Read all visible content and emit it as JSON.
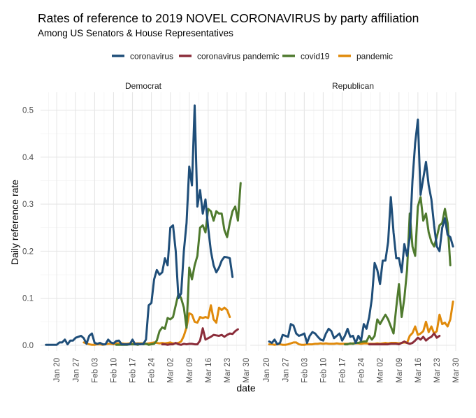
{
  "chart_data": {
    "type": "line",
    "title": "Rates of reference to 2019 NOVEL CORONAVIRUS by party affiliation",
    "subtitle": "Among US Senators & House Representatives",
    "xlabel": "date",
    "ylabel": "Daily reference rate",
    "legend_position": "top",
    "grid": true,
    "x_range": [
      "2020-01-14",
      "2020-03-30"
    ],
    "ylim": [
      -0.012,
      0.538
    ],
    "x_ticks": [
      "2020-01-20",
      "2020-01-27",
      "2020-02-03",
      "2020-02-10",
      "2020-02-17",
      "2020-02-24",
      "2020-03-02",
      "2020-03-09",
      "2020-03-16",
      "2020-03-23",
      "2020-03-30"
    ],
    "x_tick_labels": [
      "Jan 20",
      "Jan 27",
      "Feb 03",
      "Feb 10",
      "Feb 17",
      "Feb 24",
      "Mar 02",
      "Mar 09",
      "Mar 16",
      "Mar 23",
      "Mar 30"
    ],
    "y_ticks": [
      0.0,
      0.1,
      0.2,
      0.3,
      0.4,
      0.5
    ],
    "y_tick_labels": [
      "0.0",
      "0.1",
      "0.2",
      "0.3",
      "0.4",
      "0.5"
    ],
    "legend": [
      {
        "name": "coronavirus",
        "color": "#1f4e79"
      },
      {
        "name": "coronavirus pandemic",
        "color": "#8b2d3a"
      },
      {
        "name": "covid19",
        "color": "#4f7a2e"
      },
      {
        "name": "pandemic",
        "color": "#e08a0b"
      }
    ],
    "panels": [
      {
        "label": "Democrat",
        "series": [
          {
            "name": "coronavirus",
            "start": "2020-01-16",
            "values": [
              0.001,
              0.001,
              0.001,
              0.001,
              0.001,
              0.006,
              0.006,
              0.012,
              0.002,
              0.01,
              0.01,
              0.016,
              0.018,
              0.02,
              0.015,
              0.003,
              0.02,
              0.025,
              0.005,
              0.003,
              0.005,
              0.002,
              0.002,
              0.012,
              0.006,
              0.004,
              0.009,
              0.01,
              0.002,
              0.002,
              0.002,
              0.002,
              0.012,
              0.002,
              0.003,
              0.002,
              0.003,
              0.012,
              0.085,
              0.09,
              0.14,
              0.16,
              0.15,
              0.155,
              0.185,
              0.17,
              0.25,
              0.255,
              0.2,
              0.1,
              0.11,
              0.2,
              0.26,
              0.38,
              0.34,
              0.51,
              0.295,
              0.33,
              0.28,
              0.31,
              0.25,
              0.2,
              0.17,
              0.155,
              0.165,
              0.18,
              0.188,
              0.187,
              0.185,
              0.145
            ]
          },
          {
            "name": "coronavirus pandemic",
            "start": "2020-02-28",
            "values": [
              0.002,
              0.002,
              0.001,
              0.002,
              0.002,
              0.005,
              0.002,
              0.001,
              0.003,
              0.002,
              0.003,
              0.003,
              0.002,
              0.002,
              0.01,
              0.036,
              0.012,
              0.015,
              0.018,
              0.022,
              0.021,
              0.02,
              0.022,
              0.018,
              0.022,
              0.025,
              0.024,
              0.03,
              0.034
            ]
          },
          {
            "name": "covid19",
            "start": "2020-02-11",
            "values": [
              0.001,
              0.001,
              0.001,
              0.001,
              0.001,
              0.002,
              0.002,
              0.002,
              0.001,
              0.003,
              0.002,
              0.003,
              0.001,
              0.002,
              0.003,
              0.01,
              0.03,
              0.038,
              0.035,
              0.058,
              0.055,
              0.06,
              0.085,
              0.11,
              0.1,
              0.08,
              0.037,
              0.165,
              0.14,
              0.17,
              0.19,
              0.25,
              0.255,
              0.24,
              0.29,
              0.285,
              0.265,
              0.285,
              0.28,
              0.28,
              0.245,
              0.23,
              0.26,
              0.285,
              0.295,
              0.265,
              0.345
            ]
          },
          {
            "name": "pandemic",
            "start": "2020-01-30",
            "values": [
              0.006,
              0.004,
              0.002,
              0.001,
              0.001,
              0.002,
              0.002,
              0.001,
              0.002,
              0.003,
              0.003,
              0.002,
              0.004,
              0.004,
              0.004,
              0.003,
              0.003,
              0.004,
              0.003,
              0.004,
              0.004,
              0.004,
              0.004,
              0.003,
              0.004,
              0.005,
              0.006,
              0.005,
              0.004,
              0.005,
              0.004,
              0.005,
              0.006,
              0.004,
              0.004,
              0.005,
              0.008,
              0.02,
              0.038,
              0.068,
              0.065,
              0.05,
              0.048,
              0.06,
              0.058,
              0.06,
              0.058,
              0.085,
              0.055,
              0.048,
              0.08,
              0.075,
              0.08,
              0.075,
              0.06
            ]
          }
        ]
      },
      {
        "label": "Republican",
        "series": [
          {
            "name": "coronavirus",
            "start": "2020-01-21",
            "values": [
              0.008,
              0.005,
              0.012,
              0.002,
              0.005,
              0.022,
              0.02,
              0.018,
              0.045,
              0.042,
              0.025,
              0.02,
              0.022,
              0.025,
              0.005,
              0.02,
              0.028,
              0.025,
              0.018,
              0.012,
              0.01,
              0.025,
              0.035,
              0.03,
              0.015,
              0.02,
              0.025,
              0.01,
              0.02,
              0.035,
              0.018,
              0.02,
              0.005,
              0.02,
              0.01,
              0.045,
              0.035,
              0.06,
              0.1,
              0.175,
              0.16,
              0.13,
              0.18,
              0.18,
              0.22,
              0.315,
              0.24,
              0.185,
              0.185,
              0.155,
              0.215,
              0.19,
              0.23,
              0.35,
              0.43,
              0.48,
              0.32,
              0.355,
              0.39,
              0.34,
              0.31,
              0.255,
              0.21,
              0.2,
              0.25,
              0.27,
              0.235,
              0.23,
              0.21
            ]
          },
          {
            "name": "coronavirus pandemic",
            "start": "2020-02-27",
            "values": [
              0.002,
              0.002,
              0.002,
              0.002,
              0.002,
              0.002,
              0.002,
              0.002,
              0.003,
              0.003,
              0.003,
              0.002,
              0.005,
              0.008,
              0.005,
              0.003,
              0.005,
              0.01,
              0.016,
              0.012,
              0.018,
              0.01,
              0.015,
              0.018,
              0.025,
              0.016,
              0.02
            ]
          },
          {
            "name": "covid19",
            "start": "2020-02-18",
            "values": [
              0.002,
              0.002,
              0.004,
              0.003,
              0.005,
              0.005,
              0.007,
              0.008,
              0.008,
              0.02,
              0.012,
              0.02,
              0.055,
              0.045,
              0.055,
              0.065,
              0.055,
              0.04,
              0.025,
              0.08,
              0.13,
              0.06,
              0.1,
              0.16,
              0.28,
              0.21,
              0.19,
              0.295,
              0.315,
              0.265,
              0.28,
              0.24,
              0.22,
              0.21,
              0.23,
              0.255,
              0.26,
              0.29,
              0.26,
              0.17
            ]
          },
          {
            "name": "pandemic",
            "start": "2020-01-21",
            "values": [
              0.002,
              0.002,
              0.001,
              0.002,
              0.002,
              0.001,
              0.001,
              0.002,
              0.004,
              0.006,
              0.006,
              0.002,
              0.001,
              0.001,
              0.002,
              0.002,
              0.002,
              0.003,
              0.003,
              0.004,
              0.003,
              0.004,
              0.003,
              0.003,
              0.003,
              0.004,
              0.003,
              0.003,
              0.003,
              0.003,
              0.003,
              0.004,
              0.004,
              0.004,
              0.003,
              0.004,
              0.004,
              0.003,
              0.003,
              0.003,
              0.004,
              0.003,
              0.004,
              0.005,
              0.004,
              0.005,
              0.005,
              0.005,
              0.004,
              0.005,
              0.006,
              0.005,
              0.02,
              0.026,
              0.04,
              0.022,
              0.025,
              0.03,
              0.05,
              0.028,
              0.04,
              0.025,
              0.03,
              0.065,
              0.045,
              0.048,
              0.04,
              0.055,
              0.093
            ]
          }
        ]
      }
    ]
  }
}
